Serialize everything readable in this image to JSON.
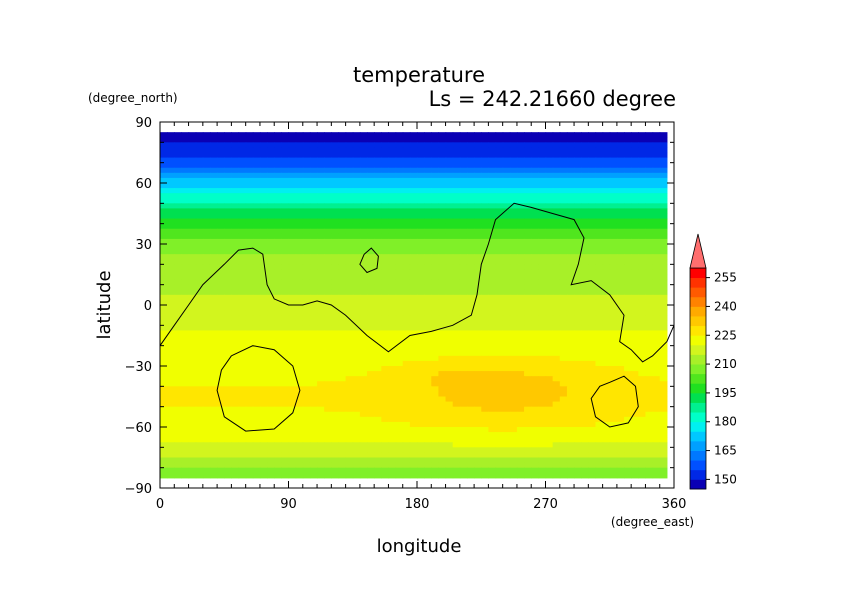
{
  "chart_data": {
    "type": "heatmap",
    "title": "temperature",
    "subtitle": "Ls = 242.21660 degree",
    "xlabel": "longitude",
    "ylabel": "latitude",
    "x_units": "(degree_east)",
    "y_units": "(degree_north)",
    "xlim": [
      0,
      360
    ],
    "ylim": [
      -90,
      90
    ],
    "x_ticks": [
      0,
      90,
      180,
      270,
      360
    ],
    "y_ticks": [
      90,
      60,
      30,
      0,
      -30,
      -60,
      -90
    ],
    "x_tick_labels": [
      "0",
      "90",
      "180",
      "270",
      "360"
    ],
    "y_tick_labels": [
      "90",
      "60",
      "30",
      "0",
      "−30",
      "−60",
      "−90"
    ],
    "colorbar": {
      "labels": [
        "255",
        "240",
        "225",
        "210",
        "195",
        "180",
        "165",
        "150"
      ],
      "values": [
        255,
        240,
        225,
        210,
        195,
        180,
        165,
        150
      ],
      "levels": [
        145,
        150,
        155,
        160,
        165,
        170,
        175,
        180,
        185,
        190,
        195,
        200,
        205,
        210,
        215,
        220,
        225,
        230,
        235,
        240,
        245,
        250,
        255,
        260
      ],
      "colors": [
        "#0a00b4",
        "#0028e6",
        "#0050ff",
        "#0078ff",
        "#00a0ff",
        "#00c8ff",
        "#00f0f0",
        "#00ffc8",
        "#00f090",
        "#00e050",
        "#20e020",
        "#50e61e",
        "#80f028",
        "#a8f028",
        "#d2f51e",
        "#f0ff00",
        "#ffe600",
        "#ffc800",
        "#ffaa00",
        "#ff8200",
        "#ff5a00",
        "#ff3200",
        "#ff0000"
      ],
      "overflow_color": "#ff6e6e"
    },
    "field": {
      "description_units": "K",
      "lat_profile_lat": [
        85,
        80,
        75,
        70,
        65,
        60,
        55,
        50,
        45,
        40,
        35,
        30,
        25,
        20,
        10,
        0,
        -10,
        -20,
        -30,
        -40,
        -50,
        -60,
        -65,
        -70,
        -75,
        -80,
        -85
      ],
      "lat_profile_T": [
        149,
        150,
        153,
        158,
        165,
        172,
        180,
        186,
        192,
        198,
        203,
        207,
        210,
        212,
        214,
        216,
        219,
        222,
        224,
        225,
        225,
        224,
        222,
        219,
        214,
        209,
        205
      ],
      "warm_spots": [
        {
          "lon": 240,
          "lat": -42,
          "dT": 8,
          "lon_width": 65,
          "lat_width": 15
        },
        {
          "lon": 205,
          "lat": -35,
          "dT": 3,
          "lon_width": 15,
          "lat_width": 5
        }
      ]
    },
    "contours": [
      {
        "points": [
          [
            0,
            -20
          ],
          [
            10,
            -10
          ],
          [
            20,
            0
          ],
          [
            30,
            10
          ],
          [
            45,
            20
          ],
          [
            55,
            27
          ],
          [
            65,
            28
          ],
          [
            72,
            25
          ],
          [
            75,
            10
          ],
          [
            80,
            3
          ],
          [
            90,
            0
          ],
          [
            100,
            0
          ],
          [
            110,
            2
          ],
          [
            120,
            0
          ],
          [
            130,
            -5
          ],
          [
            145,
            -15
          ],
          [
            160,
            -23
          ],
          [
            175,
            -15
          ],
          [
            190,
            -13
          ],
          [
            205,
            -10
          ],
          [
            218,
            -5
          ],
          [
            222,
            5
          ],
          [
            225,
            20
          ],
          [
            230,
            30
          ],
          [
            235,
            42
          ],
          [
            248,
            50
          ],
          [
            260,
            48
          ],
          [
            275,
            45
          ],
          [
            290,
            42
          ],
          [
            297,
            33
          ],
          [
            293,
            20
          ],
          [
            288,
            10
          ],
          [
            302,
            12
          ],
          [
            315,
            5
          ],
          [
            325,
            -5
          ],
          [
            322,
            -18
          ],
          [
            330,
            -22
          ],
          [
            338,
            -28
          ],
          [
            345,
            -25
          ],
          [
            355,
            -18
          ],
          [
            360,
            -10
          ]
        ]
      },
      {
        "points": [
          [
            143,
            25
          ],
          [
            140,
            20
          ],
          [
            145,
            16
          ],
          [
            152,
            18
          ],
          [
            153,
            24
          ],
          [
            148,
            28
          ],
          [
            143,
            25
          ]
        ]
      },
      {
        "points": [
          [
            50,
            -25
          ],
          [
            65,
            -20
          ],
          [
            80,
            -22
          ],
          [
            93,
            -30
          ],
          [
            98,
            -42
          ],
          [
            93,
            -53
          ],
          [
            80,
            -61
          ],
          [
            60,
            -62
          ],
          [
            45,
            -55
          ],
          [
            40,
            -42
          ],
          [
            43,
            -32
          ],
          [
            50,
            -25
          ]
        ]
      },
      {
        "points": [
          [
            315,
            -38
          ],
          [
            325,
            -35
          ],
          [
            333,
            -40
          ],
          [
            335,
            -50
          ],
          [
            328,
            -58
          ],
          [
            315,
            -60
          ],
          [
            305,
            -55
          ],
          [
            302,
            -46
          ],
          [
            308,
            -40
          ],
          [
            315,
            -38
          ]
        ]
      }
    ]
  }
}
